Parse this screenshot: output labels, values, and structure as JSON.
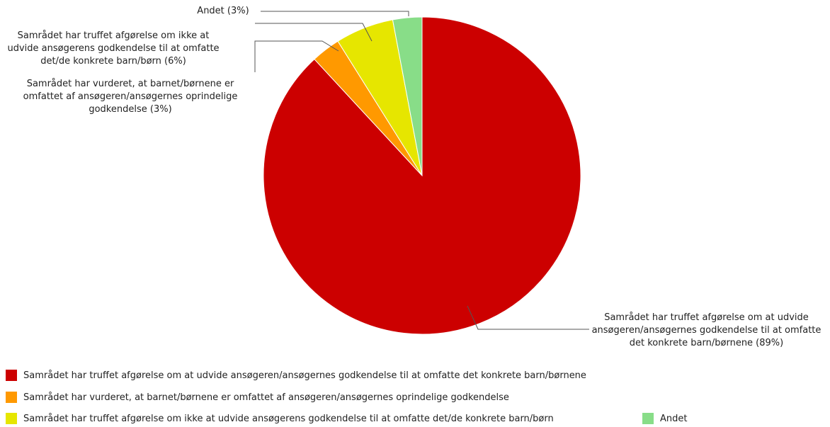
{
  "chart_data": {
    "type": "pie",
    "categories": [
      "Samrådet har truffet afgørelse om at udvide ansøgeren/ansøgernes godkendelse til at omfatte det konkrete barn/børnene",
      "Samrådet har vurderet, at barnet/børnene er omfattet af ansøgeren/ansøgernes oprindelige godkendelse",
      "Samrådet har truffet afgørelse om ikke at udvide ansøgerens godkendelse til at omfatte det/de konkrete barn/børn",
      "Andet"
    ],
    "values": [
      89,
      3,
      6,
      3
    ],
    "value_labels": [
      "Samrådet har truffet afgørelse om at udvide ansøgeren/ansøgernes godkendelse til at omfatte det konkrete barn/børnene (89%)",
      "Samrådet har vurderet, at barnet/børnene er omfattet af ansøgeren/ansøgernes oprindelige godkendelse (3%)",
      "Samrådet har truffet afgørelse om ikke at udvide ansøgerens godkendelse til at omfatte det/de konkrete barn/børn (6%)",
      "Andet (3%)"
    ],
    "colors": [
      "#cc0000",
      "#ff9900",
      "#e6e600",
      "#88dd88"
    ],
    "legend": "bottom"
  }
}
